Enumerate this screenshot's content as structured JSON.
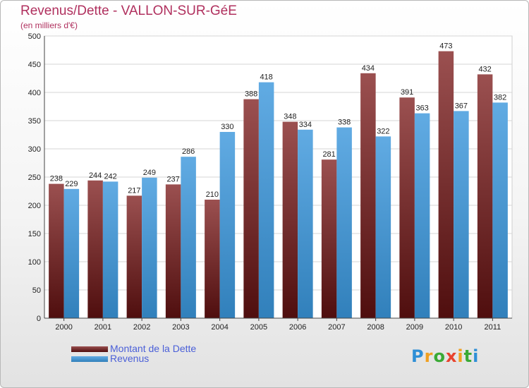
{
  "chart_data": {
    "type": "bar",
    "title": "Revenus/Dette - VALLON-SUR-GéE",
    "subtitle": "(en milliers d'€)",
    "categories": [
      "2000",
      "2001",
      "2002",
      "2003",
      "2004",
      "2005",
      "2006",
      "2007",
      "2008",
      "2009",
      "2010",
      "2011"
    ],
    "series": [
      {
        "name": "Montant de la Dette",
        "color": "#7a1616",
        "values": [
          238,
          244,
          217,
          237,
          210,
          388,
          348,
          281,
          434,
          391,
          473,
          432
        ]
      },
      {
        "name": "Revenus",
        "color": "#3a96dc",
        "values": [
          229,
          242,
          249,
          286,
          330,
          418,
          334,
          338,
          322,
          363,
          367,
          382
        ]
      }
    ],
    "ylim": [
      0,
      500
    ],
    "yticks": [
      0,
      50,
      100,
      150,
      200,
      250,
      300,
      350,
      400,
      450,
      500
    ],
    "grid": true,
    "legend_position": "bottom-left"
  },
  "logo": {
    "letters": [
      {
        "ch": "P",
        "color": "#2e8fd6"
      },
      {
        "ch": "r",
        "color": "#f0a020"
      },
      {
        "ch": "o",
        "color": "#3aaa35"
      },
      {
        "ch": "x",
        "color": "#e8432e"
      },
      {
        "ch": "i",
        "color": "#f0a020"
      },
      {
        "ch": "t",
        "color": "#3aaa35"
      },
      {
        "ch": "i",
        "color": "#2e8fd6"
      }
    ]
  }
}
